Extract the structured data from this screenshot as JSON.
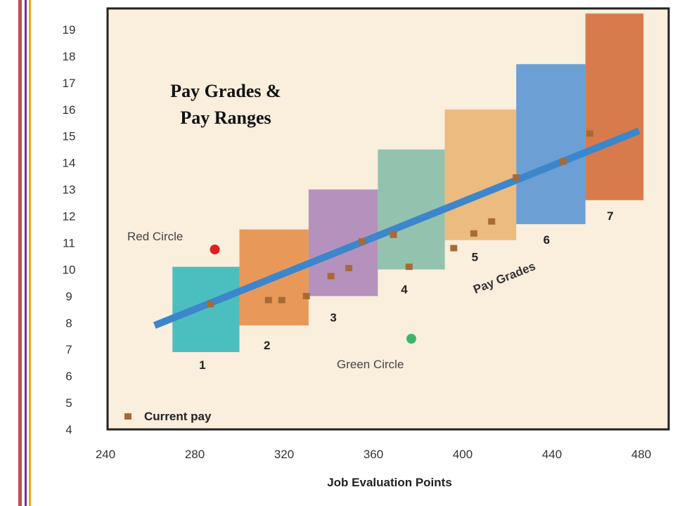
{
  "chart_data": {
    "type": "bar",
    "title_lines": [
      "Pay Grades &",
      "Pay Ranges"
    ],
    "xlabel": "Job Evaluation Points",
    "ylabel": "",
    "xlim": [
      240,
      480
    ],
    "ylim": [
      4,
      19.5
    ],
    "x_ticks": [
      240,
      280,
      320,
      360,
      400,
      440,
      480
    ],
    "y_ticks": [
      4,
      5,
      6,
      7,
      8,
      9,
      10,
      11,
      12,
      13,
      14,
      15,
      16,
      17,
      18,
      19
    ],
    "grid": false,
    "pay_grades": [
      {
        "label": "1",
        "x_start": 270,
        "x_end": 300,
        "min": 6.9,
        "max": 10.1,
        "color": "#4bbfbf"
      },
      {
        "label": "2",
        "x_start": 300,
        "x_end": 331,
        "min": 7.9,
        "max": 11.5,
        "color": "#e8995a"
      },
      {
        "label": "3",
        "x_start": 331,
        "x_end": 362,
        "min": 9.0,
        "max": 13.0,
        "color": "#b592bd"
      },
      {
        "label": "4",
        "x_start": 362,
        "x_end": 392,
        "min": 10.0,
        "max": 14.5,
        "color": "#93c2ae"
      },
      {
        "label": "5",
        "x_start": 392,
        "x_end": 424,
        "min": 11.1,
        "max": 16.0,
        "color": "#ebbb7f"
      },
      {
        "label": "6",
        "x_start": 424,
        "x_end": 455,
        "min": 11.7,
        "max": 17.7,
        "color": "#6c9fd4"
      },
      {
        "label": "7",
        "x_start": 455,
        "x_end": 481,
        "min": 12.6,
        "max": 19.6,
        "color": "#d87b4c"
      }
    ],
    "pay_policy_line": {
      "x": [
        262,
        479
      ],
      "y": [
        7.9,
        15.2
      ],
      "color": "#3c86cc"
    },
    "current_pay": {
      "name": "Current pay",
      "color": "#a86a35",
      "points": [
        {
          "x": 287,
          "y": 8.7
        },
        {
          "x": 313,
          "y": 8.85
        },
        {
          "x": 319,
          "y": 8.85
        },
        {
          "x": 330,
          "y": 9.0
        },
        {
          "x": 341,
          "y": 9.75
        },
        {
          "x": 349,
          "y": 10.05
        },
        {
          "x": 355,
          "y": 11.05
        },
        {
          "x": 369,
          "y": 11.3
        },
        {
          "x": 376,
          "y": 10.1
        },
        {
          "x": 396,
          "y": 10.8
        },
        {
          "x": 405,
          "y": 11.35
        },
        {
          "x": 413,
          "y": 11.8
        },
        {
          "x": 424,
          "y": 13.45
        },
        {
          "x": 445,
          "y": 14.05
        },
        {
          "x": 457,
          "y": 15.1
        }
      ]
    },
    "red_circle": {
      "label": "Red Circle",
      "x": 289,
      "y": 10.75,
      "color": "#e02020"
    },
    "green_circle": {
      "label": "Green Circle",
      "x": 377,
      "y": 7.4,
      "color": "#3fb56a"
    },
    "pay_grades_label": "Pay Grades",
    "legend": {
      "label": "Current pay",
      "position": "bottom-left"
    }
  }
}
